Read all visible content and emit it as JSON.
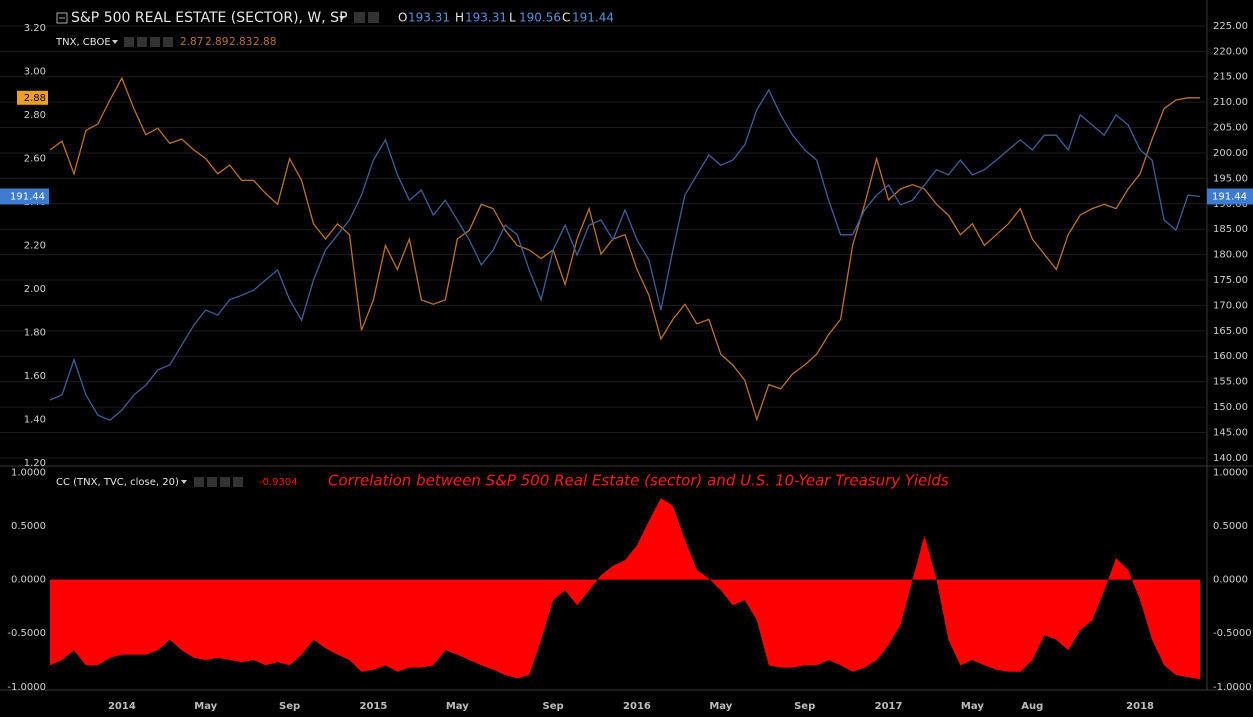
{
  "chart_data": [
    {
      "type": "line",
      "ylim": [
        1.19,
        3.33
      ],
      "y2lim": [
        138.6,
        230.1
      ],
      "grid": true,
      "yticks": [
        {
          "value": 1.2,
          "label": "1.20"
        },
        {
          "value": 1.4,
          "label": "1.40"
        },
        {
          "value": 1.6,
          "label": "1.60"
        },
        {
          "value": 1.8,
          "label": "1.80"
        },
        {
          "value": 2,
          "label": "2.00"
        },
        {
          "value": 2.2,
          "label": "2.20"
        },
        {
          "value": 2.4,
          "label": "2.40"
        },
        {
          "value": 2.6,
          "label": "2.60"
        },
        {
          "value": 2.8,
          "label": "2.80"
        },
        {
          "value": 3,
          "label": "3.00"
        },
        {
          "value": 3.2,
          "label": "3.20"
        }
      ],
      "y2ticks": [
        {
          "value": 140,
          "label": "140.00"
        },
        {
          "value": 145,
          "label": "145.00"
        },
        {
          "value": 150,
          "label": "150.00"
        },
        {
          "value": 155,
          "label": "155.00"
        },
        {
          "value": 160,
          "label": "160.00"
        },
        {
          "value": 165,
          "label": "165.00"
        },
        {
          "value": 170,
          "label": "170.00"
        },
        {
          "value": 175,
          "label": "175.00"
        },
        {
          "value": 180,
          "label": "180.00"
        },
        {
          "value": 185,
          "label": "185.00"
        },
        {
          "value": 190,
          "label": "190.00"
        },
        {
          "value": 195,
          "label": "195.00"
        },
        {
          "value": 200,
          "label": "200.00"
        },
        {
          "value": 205,
          "label": "205.00"
        },
        {
          "value": 210,
          "label": "210.00"
        },
        {
          "value": 215,
          "label": "215.00"
        },
        {
          "value": 220,
          "label": "220.00"
        },
        {
          "value": 225,
          "label": "225.00"
        }
      ],
      "series": [
        {
          "name": "TNX, CBOE",
          "color": "#b8732a",
          "ohlc": [
            2.87,
            2.89,
            2.83,
            2.88
          ],
          "values": [
            2.64,
            2.68,
            2.53,
            2.73,
            2.76,
            2.87,
            2.97,
            2.83,
            2.71,
            2.74,
            2.67,
            2.69,
            2.64,
            2.6,
            2.53,
            2.57,
            2.5,
            2.5,
            2.44,
            2.39,
            2.6,
            2.5,
            2.3,
            2.23,
            2.3,
            2.25,
            1.81,
            1.95,
            2.2,
            2.09,
            2.23,
            1.95,
            1.93,
            1.95,
            2.23,
            2.27,
            2.39,
            2.37,
            2.27,
            2.2,
            2.18,
            2.14,
            2.18,
            2.02,
            2.23,
            2.37,
            2.16,
            2.23,
            2.25,
            2.09,
            1.97,
            1.77,
            1.86,
            1.93,
            1.84,
            1.86,
            1.7,
            1.65,
            1.58,
            1.4,
            1.56,
            1.54,
            1.61,
            1.65,
            1.7,
            1.79,
            1.86,
            2.2,
            2.39,
            2.6,
            2.41,
            2.46,
            2.48,
            2.46,
            2.39,
            2.34,
            2.25,
            2.3,
            2.2,
            2.25,
            2.3,
            2.37,
            2.23,
            2.16,
            2.09,
            2.25,
            2.34,
            2.37,
            2.39,
            2.37,
            2.46,
            2.53,
            2.69,
            2.83,
            2.87,
            2.88,
            2.88
          ]
        },
        {
          "name": "S&P 500 REAL ESTATE (SECTOR), W, SP",
          "color": "#3f5f95",
          "axis": "y2",
          "ohlc": [
            {
              "label": "O",
              "value": 193.31
            },
            {
              "label": "H",
              "value": 193.31
            },
            {
              "label": "L",
              "value": 190.56
            },
            {
              "label": "C",
              "value": 191.44
            }
          ],
          "values": [
            151.4,
            152.4,
            159.3,
            152.4,
            148.4,
            147.4,
            149.4,
            152.4,
            154.3,
            157.3,
            158.3,
            162.2,
            166.1,
            169.1,
            168.1,
            171.1,
            172,
            173,
            175,
            177,
            171.1,
            167.1,
            175,
            180.9,
            183.9,
            186.8,
            191.7,
            198.6,
            202.6,
            195.7,
            190.7,
            192.7,
            187.8,
            190.7,
            186.8,
            182.9,
            178,
            180.9,
            185.8,
            183.9,
            177,
            171.1,
            180.9,
            185.8,
            179.9,
            185.8,
            186.8,
            182.9,
            188.8,
            182.9,
            178.9,
            169.1,
            180.9,
            191.7,
            195.7,
            199.6,
            197.6,
            198.6,
            201.6,
            208.5,
            212.4,
            207.5,
            203.5,
            200.6,
            198.6,
            190.7,
            183.9,
            183.9,
            188.8,
            191.7,
            193.7,
            189.8,
            190.7,
            193.7,
            196.7,
            195.7,
            198.6,
            195.7,
            196.7,
            198.6,
            200.6,
            202.6,
            200.6,
            203.5,
            203.5,
            200.6,
            207.5,
            205.5,
            203.5,
            207.5,
            205.5,
            200.6,
            198.6,
            186.8,
            184.8,
            191.7,
            191.44
          ]
        }
      ]
    },
    {
      "type": "area",
      "annotation": "Correlation between S&P 500 Real Estate (sector) and U.S. 10-Year Treasury Yields",
      "ylim": [
        -1.03,
        1.06
      ],
      "mirror_yticks": true,
      "yticks": [
        {
          "value": 1,
          "label": "1.0000"
        },
        {
          "value": 0.5,
          "label": "0.5000"
        },
        {
          "value": 0,
          "label": "0.0000"
        },
        {
          "value": -0.5,
          "label": "-0.5000"
        },
        {
          "value": -1,
          "label": "-1.0000"
        }
      ],
      "categories": [
        null,
        null,
        null,
        null,
        null,
        null,
        "2014",
        null,
        null,
        null,
        null,
        null,
        null,
        "May",
        null,
        null,
        null,
        null,
        null,
        null,
        "Sep",
        null,
        null,
        null,
        null,
        null,
        null,
        "2015",
        null,
        null,
        null,
        null,
        null,
        null,
        "May",
        null,
        null,
        null,
        null,
        null,
        null,
        null,
        "Sep",
        null,
        null,
        null,
        null,
        null,
        null,
        "2016",
        null,
        null,
        null,
        null,
        null,
        null,
        "May",
        null,
        null,
        null,
        null,
        null,
        null,
        "Sep",
        null,
        null,
        null,
        null,
        null,
        null,
        "2017",
        null,
        null,
        null,
        null,
        null,
        null,
        "May",
        null,
        null,
        null,
        null,
        "Aug",
        null,
        null,
        null,
        null,
        null,
        null,
        null,
        null,
        "2018",
        null,
        null,
        null,
        null,
        null
      ],
      "series": [
        {
          "name": "CC (TNX, TVC, close, 20)",
          "color": "#ff0000",
          "values": [
            -0.8,
            -0.75,
            -0.66,
            -0.8,
            -0.8,
            -0.73,
            -0.7,
            -0.7,
            -0.7,
            -0.66,
            -0.56,
            -0.66,
            -0.73,
            -0.75,
            -0.73,
            -0.75,
            -0.77,
            -0.75,
            -0.8,
            -0.77,
            -0.8,
            -0.7,
            -0.56,
            -0.64,
            -0.7,
            -0.75,
            -0.86,
            -0.84,
            -0.8,
            -0.86,
            -0.82,
            -0.82,
            -0.8,
            -0.66,
            -0.7,
            -0.75,
            -0.8,
            -0.84,
            -0.89,
            -0.92,
            -0.89,
            -0.56,
            -0.19,
            -0.1,
            -0.24,
            -0.1,
            0.04,
            0.13,
            0.18,
            0.32,
            0.55,
            0.76,
            0.69,
            0.37,
            0.09,
            0.01,
            -0.1,
            -0.24,
            -0.19,
            -0.38,
            -0.8,
            -0.82,
            -0.82,
            -0.8,
            -0.8,
            -0.75,
            -0.8,
            -0.86,
            -0.82,
            -0.75,
            -0.61,
            -0.42,
            0.0,
            0.41,
            0.0,
            -0.56,
            -0.8,
            -0.75,
            -0.8,
            -0.84,
            -0.86,
            -0.86,
            -0.75,
            -0.52,
            -0.56,
            -0.66,
            -0.47,
            -0.38,
            -0.1,
            0.2,
            0.09,
            -0.19,
            -0.56,
            -0.8,
            -0.89,
            -0.91,
            -0.9304
          ]
        }
      ]
    }
  ]
}
